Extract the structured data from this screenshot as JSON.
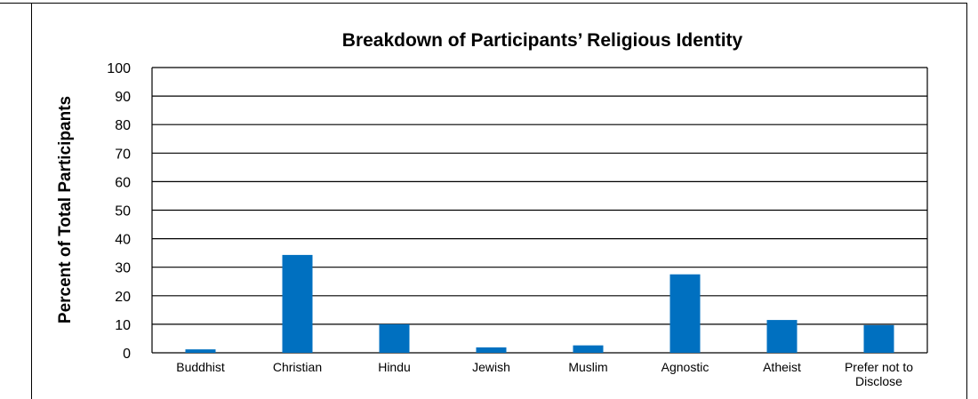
{
  "chart_data": {
    "type": "bar",
    "title": "Breakdown of Participants’ Religious Identity",
    "xlabel": "",
    "ylabel": "Percent of Total Participants",
    "ylim": [
      0,
      100
    ],
    "yticks": [
      0,
      10,
      20,
      30,
      40,
      50,
      60,
      70,
      80,
      90,
      100
    ],
    "grid": true,
    "categories": [
      "Buddhist",
      "Christian",
      "Hindu",
      "Jewish",
      "Muslim",
      "Agnostic",
      "Atheist",
      "Prefer not to Disclose"
    ],
    "category_lines": [
      [
        "Buddhist"
      ],
      [
        "Christian"
      ],
      [
        "Hindu"
      ],
      [
        "Jewish"
      ],
      [
        "Muslim"
      ],
      [
        "Agnostic"
      ],
      [
        "Atheist"
      ],
      [
        "Prefer not to",
        "Disclose"
      ]
    ],
    "values": [
      1.2,
      34.3,
      10.0,
      1.9,
      2.6,
      27.5,
      11.5,
      9.7
    ],
    "bar_color": "#0070C0"
  }
}
